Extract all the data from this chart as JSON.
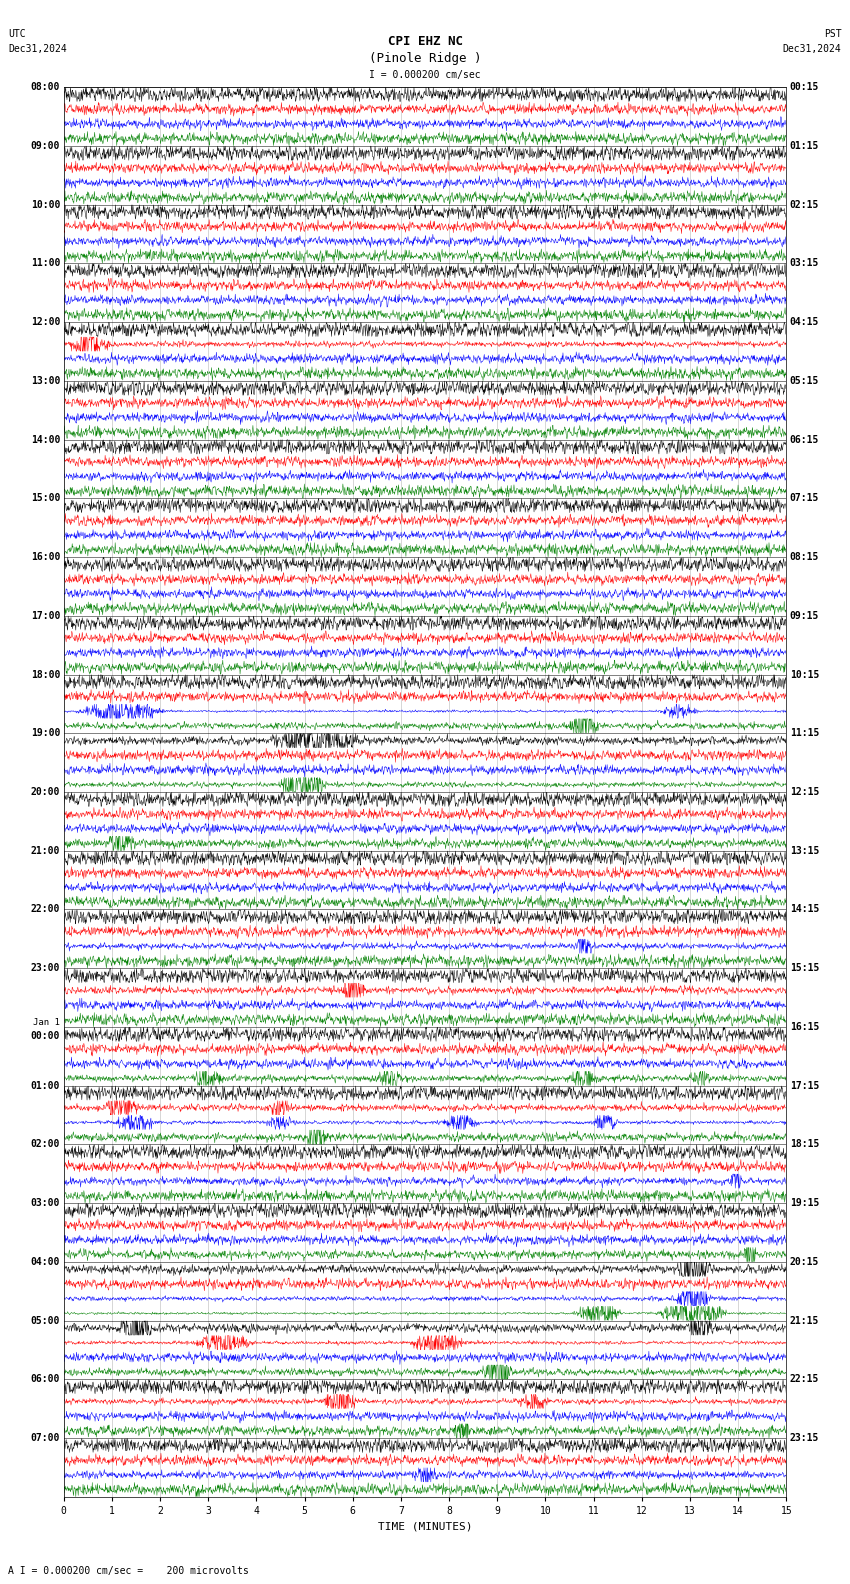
{
  "title_line1": "CPI EHZ NC",
  "title_line2": "(Pinole Ridge )",
  "scale_label": "I = 0.000200 cm/sec",
  "utc_label": "UTC",
  "utc_date": "Dec31,2024",
  "pst_label": "PST",
  "pst_date": "Dec31,2024",
  "bottom_label": "A I = 0.000200 cm/sec =    200 microvolts",
  "xlabel": "TIME (MINUTES)",
  "xlim": [
    0,
    15
  ],
  "xticks": [
    0,
    1,
    2,
    3,
    4,
    5,
    6,
    7,
    8,
    9,
    10,
    11,
    12,
    13,
    14,
    15
  ],
  "background_color": "#ffffff",
  "trace_colors": [
    "black",
    "red",
    "blue",
    "green"
  ],
  "left_times": [
    "08:00",
    "09:00",
    "10:00",
    "11:00",
    "12:00",
    "13:00",
    "14:00",
    "15:00",
    "16:00",
    "17:00",
    "18:00",
    "19:00",
    "20:00",
    "21:00",
    "22:00",
    "23:00",
    "Jan 1\n00:00",
    "01:00",
    "02:00",
    "03:00",
    "04:00",
    "05:00",
    "06:00",
    "07:00"
  ],
  "right_times": [
    "00:15",
    "01:15",
    "02:15",
    "03:15",
    "04:15",
    "05:15",
    "06:15",
    "07:15",
    "08:15",
    "09:15",
    "10:15",
    "11:15",
    "12:15",
    "13:15",
    "14:15",
    "15:15",
    "16:15",
    "17:15",
    "18:15",
    "19:15",
    "20:15",
    "21:15",
    "22:15",
    "23:15"
  ],
  "n_rows": 24,
  "traces_per_row": 4,
  "figsize": [
    8.5,
    15.84
  ],
  "dpi": 100,
  "title_fontsize": 9,
  "label_fontsize": 7,
  "axis_fontsize": 7,
  "grid_color": "#888888",
  "grid_lw": 0.4
}
